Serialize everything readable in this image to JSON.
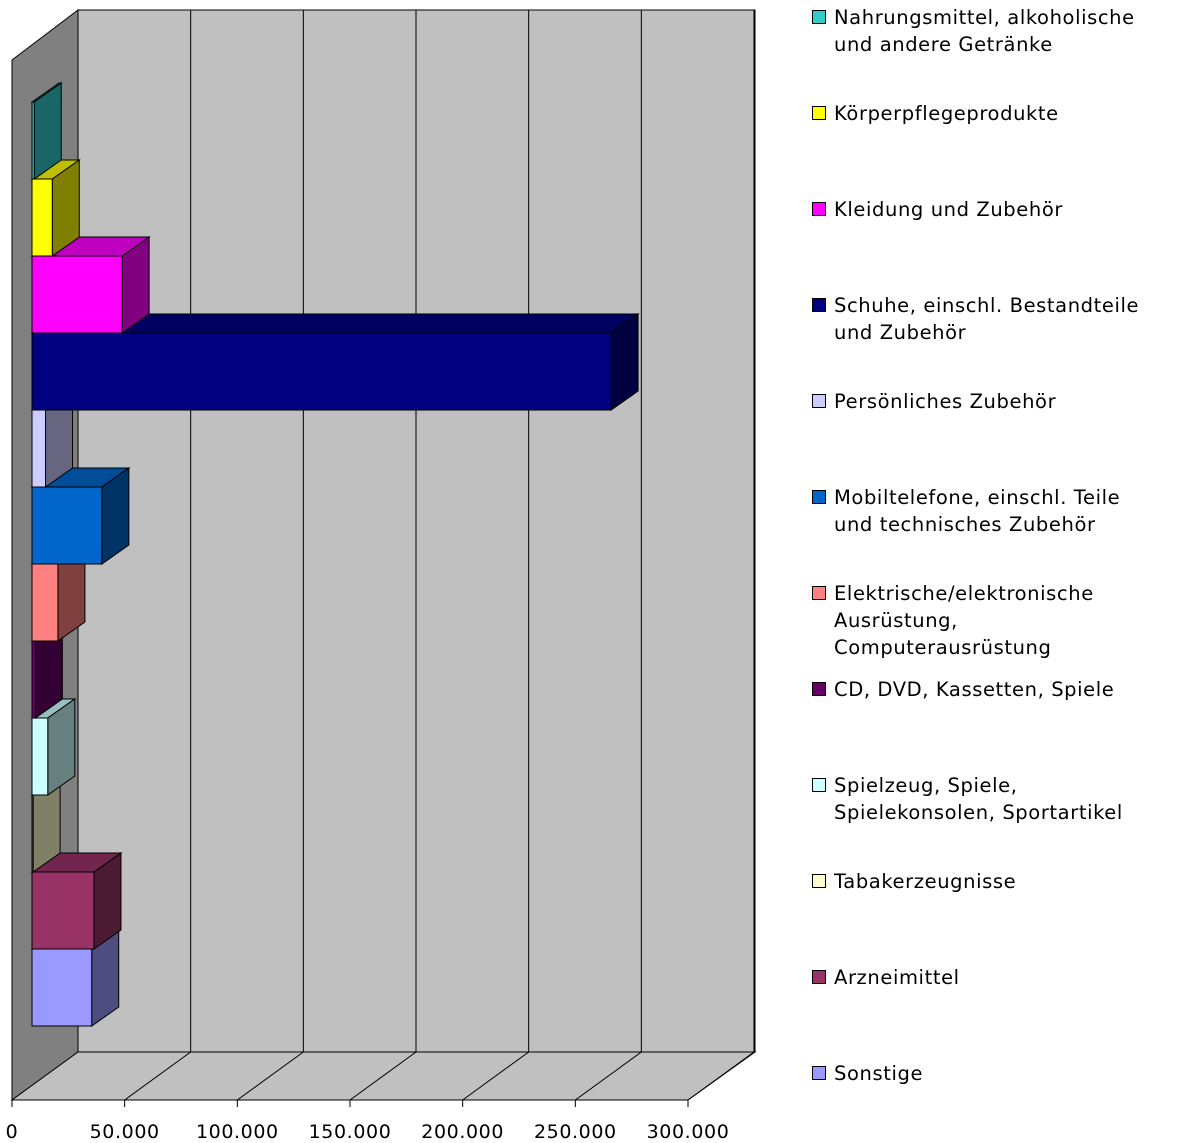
{
  "chart_data": {
    "type": "bar3d",
    "orientation": "horizontal",
    "categories": [
      "Nahrungsmittel, alkoholische\nund andere Getränke",
      "Körperpflegeprodukte",
      "Kleidung und Zubehör",
      "Schuhe, einschl. Bestandteile\nund Zubehör",
      "Persönliches Zubehör",
      "Mobiltelefone, einschl. Teile\nund technisches Zubehör",
      "Elektrische/elektronische\nAusrüstung,\nComputerausrüstung",
      "CD, DVD, Kassetten, Spiele",
      "Spielzeug, Spiele,\nSpielekonsolen, Sportartikel",
      "Tabakerzeugnisse",
      "Arzneimittel",
      "Sonstige"
    ],
    "values": [
      1000,
      9000,
      40000,
      257000,
      6000,
      31000,
      11500,
      1500,
      7000,
      500,
      27500,
      26500
    ],
    "colors": [
      "#33cccc",
      "#ffff00",
      "#ff00ff",
      "#000080",
      "#ccccff",
      "#0066cc",
      "#ff8080",
      "#660066",
      "#ccffff",
      "#ffffcc",
      "#993366",
      "#9999ff"
    ],
    "xlim": [
      0,
      300000
    ],
    "xticks": [
      0,
      {
        "value": 50000,
        "label": "50.000"
      },
      {
        "value": 100000,
        "label": "100.000"
      },
      {
        "value": 150000,
        "label": "150.000"
      },
      {
        "value": 200000,
        "label": "200.000"
      },
      {
        "value": 250000,
        "label": "250.000"
      },
      {
        "value": 300000,
        "label": "300.000"
      }
    ],
    "grid": true,
    "legend": "right"
  }
}
